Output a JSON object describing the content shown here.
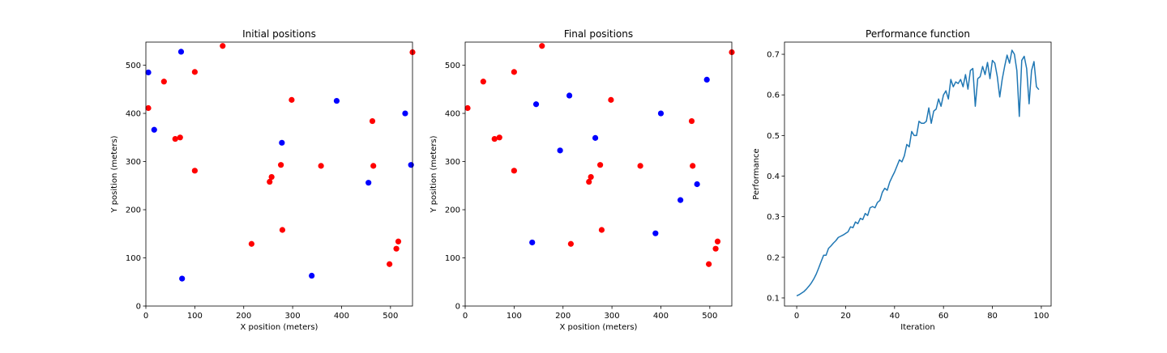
{
  "chart_data": [
    {
      "type": "scatter",
      "title": "Initial positions",
      "xlabel": "X position (meters)",
      "ylabel": "Y position (meters)",
      "xlim": [
        0,
        545
      ],
      "ylim": [
        0,
        548
      ],
      "xticks": [
        0,
        100,
        200,
        300,
        400,
        500
      ],
      "yticks": [
        0,
        100,
        200,
        300,
        400,
        500
      ],
      "grid": false,
      "colors": {
        "red": "#ff0000",
        "blue": "#0000ff"
      },
      "series": [
        {
          "color": "red",
          "points": [
            [
              157,
              540
            ],
            [
              545,
              527
            ],
            [
              37,
              466
            ],
            [
              100,
              486
            ],
            [
              5,
              411
            ],
            [
              298,
              428
            ],
            [
              463,
              384
            ],
            [
              60,
              347
            ],
            [
              70,
              350
            ],
            [
              100,
              281
            ],
            [
              276,
              293
            ],
            [
              257,
              268
            ],
            [
              253,
              258
            ],
            [
              358,
              291
            ],
            [
              465,
              291
            ],
            [
              216,
              129
            ],
            [
              279,
              158
            ],
            [
              516,
              134
            ],
            [
              512,
              119
            ],
            [
              498,
              87
            ]
          ]
        },
        {
          "color": "blue",
          "points": [
            [
              5,
              485
            ],
            [
              72,
              528
            ],
            [
              17,
              366
            ],
            [
              390,
              426
            ],
            [
              530,
              400
            ],
            [
              278,
              339
            ],
            [
              542,
              293
            ],
            [
              455,
              256
            ],
            [
              339,
              63
            ],
            [
              74,
              57
            ]
          ]
        }
      ]
    },
    {
      "type": "scatter",
      "title": "Final positions",
      "xlabel": "X position (meters)",
      "ylabel": "Y position (meters)",
      "xlim": [
        0,
        545
      ],
      "ylim": [
        0,
        548
      ],
      "xticks": [
        0,
        100,
        200,
        300,
        400,
        500
      ],
      "yticks": [
        0,
        100,
        200,
        300,
        400,
        500
      ],
      "grid": false,
      "colors": {
        "red": "#ff0000",
        "blue": "#0000ff"
      },
      "series": [
        {
          "color": "red",
          "points": [
            [
              157,
              540
            ],
            [
              545,
              527
            ],
            [
              37,
              466
            ],
            [
              100,
              486
            ],
            [
              5,
              411
            ],
            [
              298,
              428
            ],
            [
              463,
              384
            ],
            [
              60,
              347
            ],
            [
              70,
              350
            ],
            [
              100,
              281
            ],
            [
              276,
              293
            ],
            [
              257,
              268
            ],
            [
              253,
              258
            ],
            [
              358,
              291
            ],
            [
              465,
              291
            ],
            [
              216,
              129
            ],
            [
              279,
              158
            ],
            [
              516,
              134
            ],
            [
              512,
              119
            ],
            [
              498,
              87
            ]
          ]
        },
        {
          "color": "blue",
          "points": [
            [
              145,
              419
            ],
            [
              213,
              437
            ],
            [
              494,
              470
            ],
            [
              266,
              349
            ],
            [
              400,
              400
            ],
            [
              194,
              323
            ],
            [
              474,
              253
            ],
            [
              440,
              220
            ],
            [
              389,
              151
            ],
            [
              137,
              132
            ]
          ]
        }
      ]
    },
    {
      "type": "line",
      "title": "Performance function",
      "xlabel": "Iteration",
      "ylabel": "Performance",
      "xlim": [
        -5,
        104
      ],
      "ylim": [
        0.08,
        0.73
      ],
      "xticks": [
        0,
        20,
        40,
        60,
        80,
        100
      ],
      "yticks": [
        0.1,
        0.2,
        0.3,
        0.4,
        0.5,
        0.6,
        0.7
      ],
      "grid": false,
      "line_color": "#1f77b4",
      "x_start": 0,
      "values": [
        0.105,
        0.108,
        0.112,
        0.116,
        0.122,
        0.129,
        0.137,
        0.147,
        0.159,
        0.174,
        0.19,
        0.205,
        0.205,
        0.222,
        0.228,
        0.235,
        0.241,
        0.249,
        0.252,
        0.255,
        0.259,
        0.263,
        0.275,
        0.273,
        0.287,
        0.283,
        0.296,
        0.293,
        0.308,
        0.303,
        0.322,
        0.325,
        0.322,
        0.335,
        0.34,
        0.36,
        0.37,
        0.365,
        0.385,
        0.398,
        0.41,
        0.425,
        0.44,
        0.435,
        0.45,
        0.478,
        0.472,
        0.51,
        0.5,
        0.5,
        0.535,
        0.53,
        0.53,
        0.535,
        0.568,
        0.53,
        0.56,
        0.565,
        0.59,
        0.572,
        0.6,
        0.61,
        0.59,
        0.638,
        0.62,
        0.632,
        0.628,
        0.638,
        0.62,
        0.65,
        0.614,
        0.66,
        0.665,
        0.572,
        0.64,
        0.645,
        0.67,
        0.65,
        0.68,
        0.64,
        0.685,
        0.678,
        0.645,
        0.595,
        0.638,
        0.67,
        0.698,
        0.678,
        0.71,
        0.7,
        0.66,
        0.547,
        0.685,
        0.695,
        0.665,
        0.578,
        0.66,
        0.682,
        0.62,
        0.613
      ]
    }
  ]
}
